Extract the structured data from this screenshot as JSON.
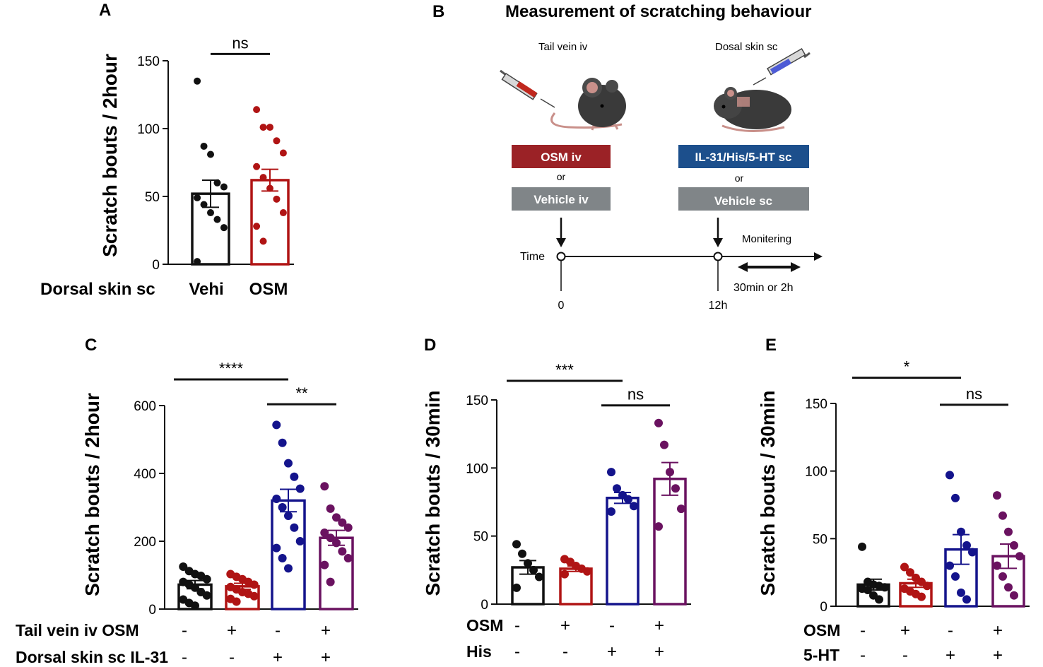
{
  "colors": {
    "black": "#111111",
    "red": "#b01414",
    "blue": "#14148c",
    "purple": "#6a1260",
    "osm_box": "#9b2226",
    "il31_box": "#1c4f8c",
    "vehicle_box": "#808588"
  },
  "panel_b": {
    "label": "B",
    "title": "Measurement of scratching behaviour",
    "tail_vein_label": "Tail vein iv",
    "dorsal_label": "Dosal skin sc",
    "osm_box": "OSM  iv",
    "il31_box": "IL-31/His/5-HT sc",
    "or_left": "or",
    "or_right": "or",
    "vehicle_iv": "Vehicle iv",
    "vehicle_sc": "Vehicle sc",
    "time_label": "Time",
    "t0": "0",
    "t12": "12h",
    "monitoring": "Monitering",
    "duration": "30min or 2h"
  },
  "chart_data": [
    {
      "panel": "A",
      "type": "bar",
      "ylabel": "Scratch bouts / 2hour",
      "ylim": [
        0,
        150
      ],
      "yticks": [
        0,
        50,
        100,
        150
      ],
      "row_labels": [
        "Dorsal skin sc"
      ],
      "categories": [
        "Vehi",
        "OSM"
      ],
      "values": [
        52,
        62
      ],
      "sem": [
        10,
        8
      ],
      "series_colors": [
        "black",
        "red"
      ],
      "points": [
        [
          135,
          87,
          81,
          60,
          57,
          49,
          44,
          38,
          33,
          27,
          2
        ],
        [
          114,
          101,
          101,
          91,
          82,
          72,
          64,
          56,
          48,
          38,
          28,
          17
        ]
      ],
      "significance": [
        {
          "from": 0,
          "to": 1,
          "label": "ns",
          "y": 155
        }
      ]
    },
    {
      "panel": "C",
      "type": "bar",
      "ylabel": "Scratch bouts / 2hour",
      "ylim": [
        0,
        600
      ],
      "yticks": [
        0,
        200,
        400,
        600
      ],
      "row_labels": [
        "Tail  vein iv OSM",
        "Dorsal  skin  sc IL-31"
      ],
      "row_signs": [
        [
          "-",
          "+",
          "-",
          "+"
        ],
        [
          "-",
          "-",
          "+",
          "+"
        ]
      ],
      "categories": [
        "-/-",
        "+/-",
        "-/+",
        "+/+"
      ],
      "values": [
        72,
        67,
        320,
        210
      ],
      "sem": [
        12,
        9,
        33,
        22
      ],
      "series_colors": [
        "black",
        "red",
        "blue",
        "purple"
      ],
      "points": [
        [
          125,
          112,
          103,
          98,
          88,
          80,
          72,
          63,
          50,
          40,
          28,
          18,
          10
        ],
        [
          103,
          95,
          88,
          80,
          72,
          65,
          58,
          50,
          45,
          38,
          30,
          22
        ],
        [
          543,
          490,
          430,
          390,
          355,
          325,
          300,
          275,
          240,
          200,
          180,
          150,
          120
        ],
        [
          362,
          296,
          270,
          255,
          240,
          225,
          210,
          195,
          170,
          150,
          130,
          80
        ]
      ],
      "significance": [
        {
          "from": 0,
          "to": 2,
          "label": "****",
          "y": 677
        },
        {
          "from": 2,
          "to": 3,
          "label": "**",
          "y": 604
        }
      ]
    },
    {
      "panel": "D",
      "type": "bar",
      "ylabel": "Scratch bouts / 30min",
      "ylim": [
        0,
        150
      ],
      "yticks": [
        0,
        50,
        100,
        150
      ],
      "row_labels": [
        "OSM",
        "His"
      ],
      "row_signs": [
        [
          "-",
          "+",
          "-",
          "+"
        ],
        [
          "-",
          "-",
          "+",
          "+"
        ]
      ],
      "categories": [
        "-/-",
        "+/-",
        "-/+",
        "+/+"
      ],
      "values": [
        27,
        26,
        78,
        92
      ],
      "sem": [
        5,
        2,
        4,
        12
      ],
      "series_colors": [
        "black",
        "red",
        "blue",
        "purple"
      ],
      "points": [
        [
          44,
          37,
          30,
          25,
          20,
          12
        ],
        [
          33,
          31,
          28,
          26,
          24,
          22
        ],
        [
          97,
          85,
          80,
          77,
          72,
          68
        ],
        [
          133,
          117,
          97,
          85,
          70,
          57
        ]
      ],
      "significance": [
        {
          "from": 0,
          "to": 2,
          "label": "***",
          "y": 164
        },
        {
          "from": 2,
          "to": 3,
          "label": "ns",
          "y": 146
        }
      ]
    },
    {
      "panel": "E",
      "type": "bar",
      "ylabel": "Scratch bouts / 30min",
      "ylim": [
        0,
        150
      ],
      "yticks": [
        0,
        50,
        100,
        150
      ],
      "row_labels": [
        "OSM",
        "5-HT"
      ],
      "row_signs": [
        [
          "-",
          "+",
          "-",
          "+"
        ],
        [
          "-",
          "-",
          "+",
          "+"
        ]
      ],
      "categories": [
        "-/-",
        "+/-",
        "-/+",
        "+/+"
      ],
      "values": [
        16,
        17,
        42,
        37
      ],
      "sem": [
        4,
        3,
        11,
        9
      ],
      "series_colors": [
        "black",
        "red",
        "blue",
        "purple"
      ],
      "points": [
        [
          44,
          18,
          16,
          15,
          14,
          13,
          12,
          8,
          5
        ],
        [
          29,
          25,
          21,
          18,
          15,
          13,
          11,
          9,
          7
        ],
        [
          97,
          80,
          55,
          45,
          40,
          30,
          22,
          10,
          5
        ],
        [
          82,
          67,
          55,
          45,
          37,
          30,
          22,
          14,
          8
        ]
      ],
      "significance": [
        {
          "from": 0,
          "to": 2,
          "label": "*",
          "y": 169
        },
        {
          "from": 2,
          "to": 3,
          "label": "ns",
          "y": 149
        }
      ]
    }
  ]
}
